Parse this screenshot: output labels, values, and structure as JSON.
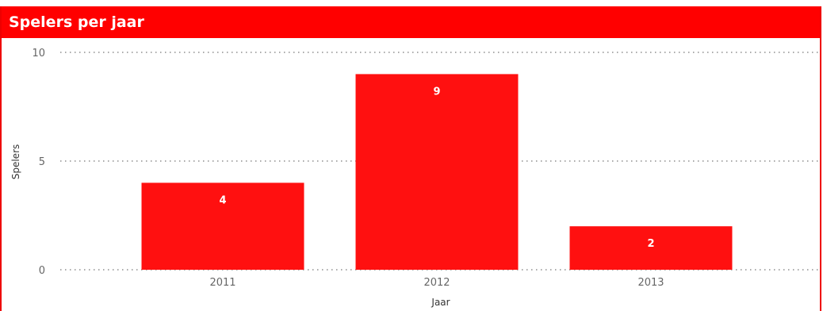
{
  "colors": {
    "accent": "#ff0000",
    "bar": "#ff1010",
    "gridline": "#777777"
  },
  "chart_data": {
    "type": "bar",
    "title": "Spelers per jaar",
    "xlabel": "Jaar",
    "ylabel": "Spelers",
    "categories": [
      "2011",
      "2012",
      "2013"
    ],
    "values": [
      4,
      9,
      2
    ],
    "data_labels": [
      "4",
      "9",
      "2"
    ],
    "ylim": [
      0,
      10
    ],
    "yticks": [
      0,
      5,
      10
    ],
    "ytick_labels": [
      "0",
      "5",
      "10"
    ],
    "grid": true,
    "legend": false
  }
}
